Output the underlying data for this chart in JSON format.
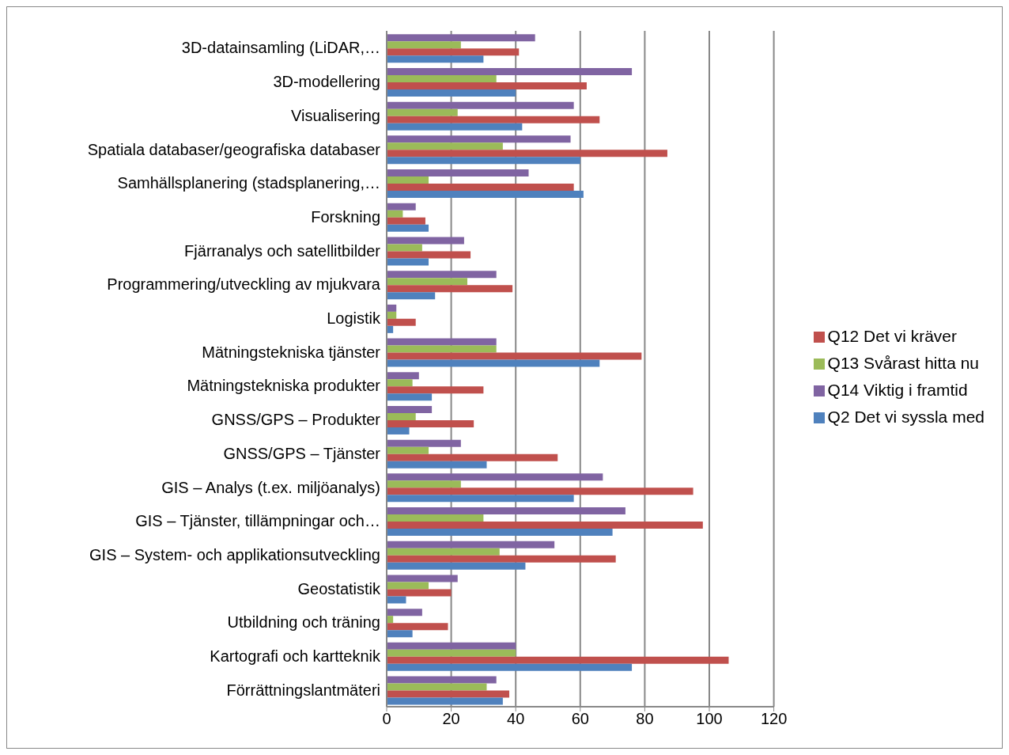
{
  "chart_data": {
    "type": "bar",
    "orientation": "horizontal",
    "categories": [
      "3D-datainsamling (LiDAR,…",
      "3D-modellering",
      "Visualisering",
      "Spatiala databaser/geografiska databaser",
      "Samhällsplanering (stadsplanering,…",
      "Forskning",
      "Fjärranalys och satellitbilder",
      "Programmering/utveckling av mjukvara",
      "Logistik",
      "Mätningstekniska tjänster",
      "Mätningstekniska produkter",
      "GNSS/GPS – Produkter",
      "GNSS/GPS – Tjänster",
      "GIS – Analys (t.ex. miljöanalys)",
      "GIS – Tjänster, tillämpningar och…",
      "GIS – System- och applikationsutveckling",
      "Geostatistik",
      "Utbildning och träning",
      "Kartografi och kartteknik",
      "Förrättningslantmäteri"
    ],
    "series": [
      {
        "name": "Q14 Viktig i framtid",
        "color": "#8064a2",
        "values": [
          46,
          76,
          58,
          57,
          44,
          9,
          24,
          34,
          3,
          34,
          10,
          14,
          23,
          67,
          74,
          52,
          22,
          11,
          40,
          34
        ]
      },
      {
        "name": "Q13 Svårast hitta nu",
        "color": "#9bbb59",
        "values": [
          23,
          34,
          22,
          36,
          13,
          5,
          11,
          25,
          3,
          34,
          8,
          9,
          13,
          23,
          30,
          35,
          13,
          2,
          40,
          31
        ]
      },
      {
        "name": "Q12 Det vi kräver",
        "color": "#c0504d",
        "values": [
          41,
          62,
          66,
          87,
          58,
          12,
          26,
          39,
          9,
          79,
          30,
          27,
          53,
          95,
          98,
          71,
          20,
          19,
          106,
          38
        ]
      },
      {
        "name": "Q2 Det vi syssla med",
        "color": "#4f81bd",
        "values": [
          30,
          40,
          42,
          60,
          61,
          13,
          13,
          15,
          2,
          66,
          14,
          7,
          31,
          58,
          70,
          43,
          6,
          8,
          76,
          36
        ]
      }
    ],
    "xlim": [
      0,
      120
    ],
    "xticks": [
      0,
      20,
      40,
      60,
      80,
      100,
      120
    ],
    "grid": "x",
    "legend": "right"
  }
}
